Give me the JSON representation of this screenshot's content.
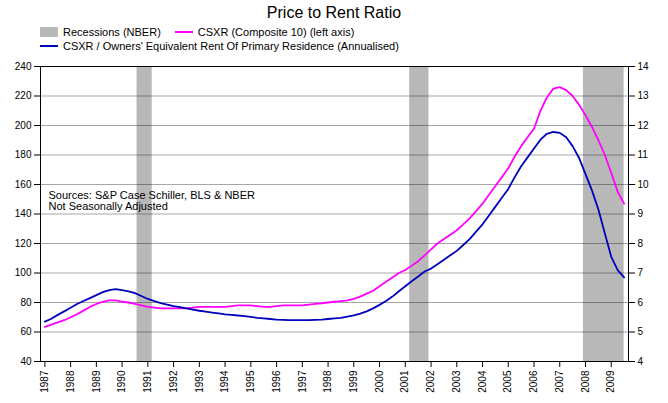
{
  "chart_data": {
    "type": "line",
    "title": "Price to Rent Ratio",
    "x": [
      1987.0,
      1987.25,
      1987.5,
      1987.75,
      1988.0,
      1988.25,
      1988.5,
      1988.75,
      1989.0,
      1989.25,
      1989.5,
      1989.75,
      1990.0,
      1990.25,
      1990.5,
      1990.75,
      1991.0,
      1991.25,
      1991.5,
      1991.75,
      1992.0,
      1992.25,
      1992.5,
      1992.75,
      1993.0,
      1993.25,
      1993.5,
      1993.75,
      1994.0,
      1994.25,
      1994.5,
      1994.75,
      1995.0,
      1995.25,
      1995.5,
      1995.75,
      1996.0,
      1996.25,
      1996.5,
      1996.75,
      1997.0,
      1997.25,
      1997.5,
      1997.75,
      1998.0,
      1998.25,
      1998.5,
      1998.75,
      1999.0,
      1999.25,
      1999.5,
      1999.75,
      2000.0,
      2000.25,
      2000.5,
      2000.75,
      2001.0,
      2001.25,
      2001.5,
      2001.75,
      2002.0,
      2002.25,
      2002.5,
      2002.75,
      2003.0,
      2003.25,
      2003.5,
      2003.75,
      2004.0,
      2004.25,
      2004.5,
      2004.75,
      2005.0,
      2005.25,
      2005.5,
      2005.75,
      2006.0,
      2006.25,
      2006.5,
      2006.75,
      2007.0,
      2007.25,
      2007.5,
      2007.75,
      2008.0,
      2008.25,
      2008.5,
      2008.75,
      2009.0,
      2009.25,
      2009.5
    ],
    "series": [
      {
        "name": "CSXR (Composite 10) (left axis)",
        "color": "#ff00ff",
        "values": [
          63.5,
          65,
          66.5,
          68,
          70,
          72,
          74.5,
          77,
          79,
          80.5,
          81.5,
          81.5,
          80.5,
          80,
          79,
          78,
          77,
          76.5,
          76,
          76,
          76,
          76,
          76,
          76.5,
          77,
          77,
          77,
          77,
          77,
          77.5,
          78,
          78,
          78,
          77.5,
          77,
          77,
          77.5,
          78,
          78,
          78,
          78,
          78.5,
          79,
          79.5,
          80,
          80.5,
          81,
          81.5,
          82.5,
          84,
          86,
          88,
          91,
          94,
          97,
          100,
          102,
          105,
          108,
          112,
          116,
          120,
          123,
          126,
          129,
          133,
          137,
          142,
          147,
          153,
          159,
          165,
          171,
          179,
          186,
          192,
          198,
          210,
          219,
          225,
          226,
          224,
          220,
          214,
          207,
          199,
          190,
          180,
          168,
          155,
          147
        ]
      },
      {
        "name": "CSXR / Owners' Equivalent Rent Of Primary Residence (Annualised)",
        "color": "#0000bb",
        "axis": "y2",
        "values": [
          5.35,
          5.45,
          5.58,
          5.7,
          5.82,
          5.95,
          6.05,
          6.15,
          6.25,
          6.35,
          6.42,
          6.45,
          6.42,
          6.38,
          6.32,
          6.22,
          6.12,
          6.05,
          5.98,
          5.93,
          5.88,
          5.84,
          5.8,
          5.76,
          5.72,
          5.69,
          5.66,
          5.63,
          5.6,
          5.58,
          5.56,
          5.54,
          5.51,
          5.48,
          5.46,
          5.44,
          5.42,
          5.41,
          5.4,
          5.4,
          5.4,
          5.4,
          5.41,
          5.42,
          5.44,
          5.46,
          5.48,
          5.52,
          5.56,
          5.62,
          5.7,
          5.8,
          5.92,
          6.05,
          6.2,
          6.38,
          6.55,
          6.72,
          6.88,
          7.05,
          7.15,
          7.3,
          7.45,
          7.6,
          7.75,
          7.95,
          8.15,
          8.4,
          8.65,
          8.95,
          9.25,
          9.55,
          9.85,
          10.25,
          10.62,
          10.92,
          11.22,
          11.52,
          11.72,
          11.78,
          11.75,
          11.6,
          11.3,
          10.9,
          10.35,
          9.8,
          9.15,
          8.35,
          7.55,
          7.1,
          6.85
        ]
      }
    ],
    "recessions": {
      "name": "Recessions (NBER)",
      "color": "#b8b8b8",
      "spans": [
        [
          1990.58,
          1991.17
        ],
        [
          2001.17,
          2001.92
        ],
        [
          2007.92,
          2009.5
        ]
      ]
    },
    "annotations": [
      "Sources: S&P Case Schiller, BLS & NBER\nNot Seasonally Adjusted"
    ],
    "xlim": [
      1986.83,
      2009.67
    ],
    "xticks": [
      1987,
      1988,
      1989,
      1990,
      1991,
      1992,
      1993,
      1994,
      1995,
      1996,
      1997,
      1998,
      1999,
      2000,
      2001,
      2002,
      2003,
      2004,
      2005,
      2006,
      2007,
      2008,
      2009
    ],
    "ylim": [
      40,
      240
    ],
    "yticks": [
      40,
      60,
      80,
      100,
      120,
      140,
      160,
      180,
      200,
      220,
      240
    ],
    "y2lim": [
      4,
      14
    ],
    "y2ticks": [
      4,
      5,
      6,
      7,
      8,
      9,
      10,
      11,
      12,
      13,
      14
    ],
    "grid": true
  }
}
